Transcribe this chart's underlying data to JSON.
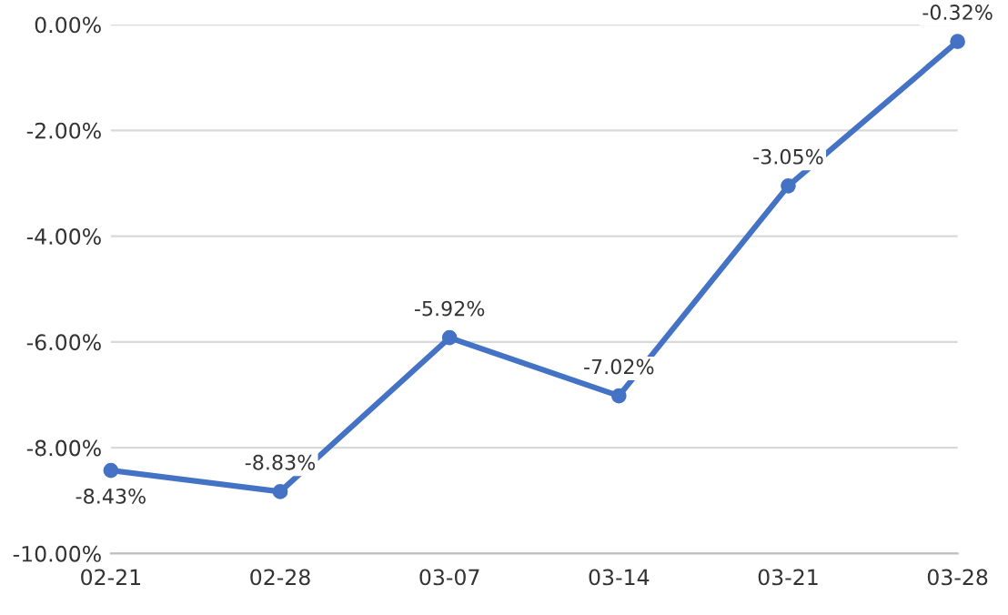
{
  "chart_data": {
    "type": "line",
    "categories": [
      "02-21",
      "02-28",
      "03-07",
      "03-14",
      "03-21",
      "03-28"
    ],
    "series": [
      {
        "color": "#4472c4",
        "values": [
          -8.43,
          -8.83,
          -5.92,
          -7.02,
          -3.05,
          -0.32
        ],
        "value_labels": [
          "-8.43%",
          "-8.83%",
          "-5.92%",
          "-7.02%",
          "-3.05%",
          "-0.32%"
        ]
      }
    ],
    "ylim": [
      -10,
      0
    ],
    "yticks": [
      {
        "value": -10,
        "label": "-10.00%"
      },
      {
        "value": -8,
        "label": "-8.00%"
      },
      {
        "value": -6,
        "label": "-6.00%"
      },
      {
        "value": -4,
        "label": "-4.00%"
      },
      {
        "value": -2,
        "label": "-2.00%"
      },
      {
        "value": 0,
        "label": "0.00%"
      }
    ],
    "grid": "y",
    "marker": "circle",
    "line_style": "solid"
  }
}
